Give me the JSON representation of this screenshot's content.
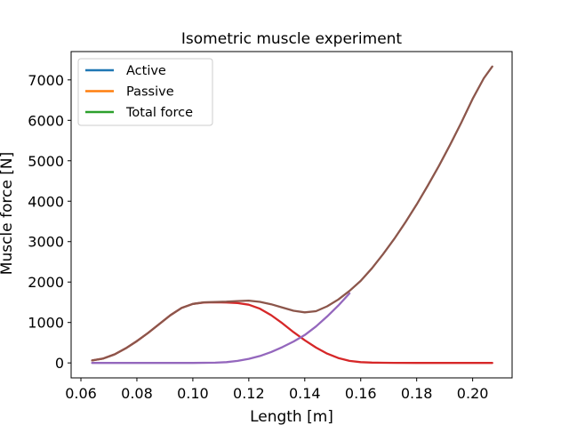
{
  "chart_data": {
    "type": "line",
    "title": "Isometric muscle experiment",
    "xlabel": "Length [m]",
    "ylabel": "Muscle force [N]",
    "xlim": [
      0.0565,
      0.2141
    ],
    "ylim": [
      -370,
      7700
    ],
    "xticks": [
      0.06,
      0.08,
      0.1,
      0.12,
      0.14,
      0.16,
      0.18,
      0.2
    ],
    "xtick_labels": [
      "0.06",
      "0.08",
      "0.10",
      "0.12",
      "0.14",
      "0.16",
      "0.18",
      "0.20"
    ],
    "yticks": [
      0,
      1000,
      2000,
      3000,
      4000,
      5000,
      6000,
      7000
    ],
    "ytick_labels": [
      "0",
      "1000",
      "2000",
      "3000",
      "4000",
      "5000",
      "6000",
      "7000"
    ],
    "grid": false,
    "legend_position": "upper-left",
    "legend": [
      {
        "label": "Active",
        "color": "#1f77b4"
      },
      {
        "label": "Passive",
        "color": "#ff7f0e"
      },
      {
        "label": "Total force",
        "color": "#2ca02c"
      }
    ],
    "series": [
      {
        "color": "#d62728",
        "x": [
          0.064,
          0.068,
          0.072,
          0.076,
          0.08,
          0.084,
          0.088,
          0.092,
          0.096,
          0.1,
          0.104,
          0.108,
          0.112,
          0.116,
          0.12,
          0.124,
          0.128,
          0.132,
          0.136,
          0.14,
          0.144,
          0.148,
          0.152,
          0.156,
          0.16,
          0.164,
          0.168,
          0.172,
          0.18,
          0.19,
          0.2,
          0.207
        ],
        "y": [
          60,
          110,
          210,
          360,
          540,
          740,
          960,
          1180,
          1360,
          1460,
          1495,
          1500,
          1495,
          1480,
          1440,
          1340,
          1180,
          980,
          760,
          560,
          380,
          230,
          120,
          50,
          20,
          8,
          3,
          1,
          0,
          0,
          0,
          0
        ]
      },
      {
        "color": "#9467bd",
        "x": [
          0.064,
          0.07,
          0.08,
          0.09,
          0.1,
          0.108,
          0.112,
          0.116,
          0.12,
          0.124,
          0.128,
          0.132,
          0.136,
          0.14,
          0.144,
          0.148,
          0.152,
          0.156
        ],
        "y": [
          0,
          0,
          0,
          0,
          0,
          5,
          20,
          50,
          100,
          170,
          270,
          390,
          530,
          690,
          900,
          1150,
          1420,
          1720
        ]
      },
      {
        "color": "#8c564b",
        "x": [
          0.064,
          0.068,
          0.072,
          0.076,
          0.08,
          0.084,
          0.088,
          0.092,
          0.096,
          0.1,
          0.104,
          0.108,
          0.112,
          0.116,
          0.12,
          0.124,
          0.128,
          0.132,
          0.136,
          0.14,
          0.144,
          0.148,
          0.152,
          0.156,
          0.16,
          0.164,
          0.168,
          0.172,
          0.176,
          0.18,
          0.184,
          0.188,
          0.192,
          0.196,
          0.2,
          0.204,
          0.207
        ],
        "y": [
          60,
          110,
          210,
          360,
          540,
          740,
          960,
          1180,
          1360,
          1460,
          1500,
          1505,
          1515,
          1530,
          1540,
          1510,
          1450,
          1370,
          1290,
          1250,
          1280,
          1400,
          1570,
          1780,
          2030,
          2340,
          2690,
          3070,
          3480,
          3920,
          4390,
          4880,
          5400,
          5950,
          6530,
          7040,
          7330
        ]
      }
    ]
  }
}
